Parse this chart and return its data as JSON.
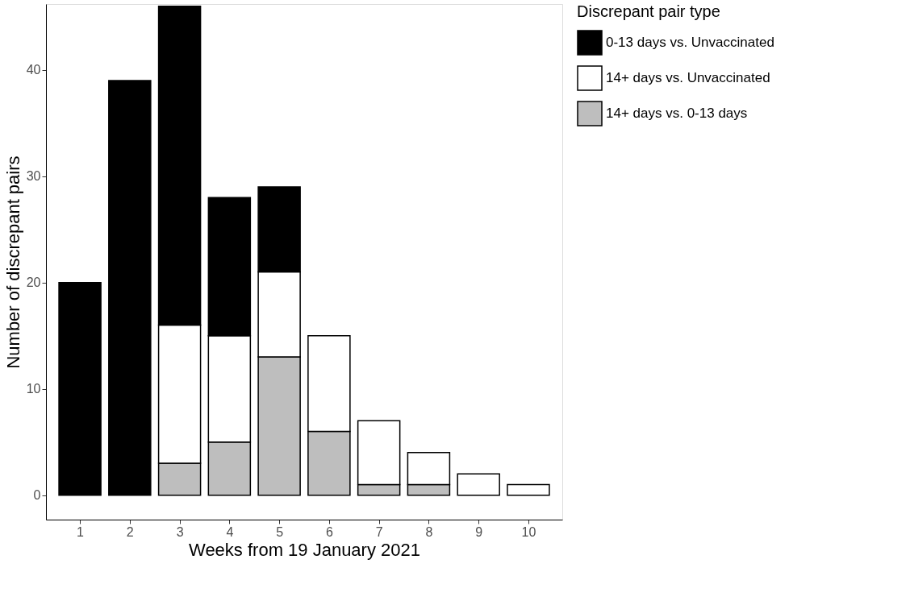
{
  "chart_data": {
    "type": "bar",
    "stacked": true,
    "xlabel": "Weeks from 19 January 2021",
    "ylabel": "Number of discrepant pairs",
    "legend_title": "Discrepant pair type",
    "categories": [
      "1",
      "2",
      "3",
      "4",
      "5",
      "6",
      "7",
      "8",
      "9",
      "10"
    ],
    "series": [
      {
        "name": "14+ days vs. 0-13 days",
        "color": "#bebebe",
        "values": [
          null,
          null,
          3,
          5,
          13,
          6,
          1,
          1,
          null,
          null
        ]
      },
      {
        "name": "14+ days vs. Unvaccinated",
        "color": "#ffffff",
        "values": [
          null,
          null,
          13,
          10,
          8,
          9,
          6,
          3,
          2,
          1
        ]
      },
      {
        "name": "0-13 days vs. Unvaccinated",
        "color": "#000000",
        "values": [
          20,
          39,
          30,
          13,
          8,
          null,
          null,
          null,
          null,
          null
        ]
      }
    ],
    "ylim": [
      -2.3,
      46.2
    ],
    "yticks": [
      0,
      10,
      20,
      30,
      40
    ],
    "grid": false,
    "legend": "right"
  }
}
